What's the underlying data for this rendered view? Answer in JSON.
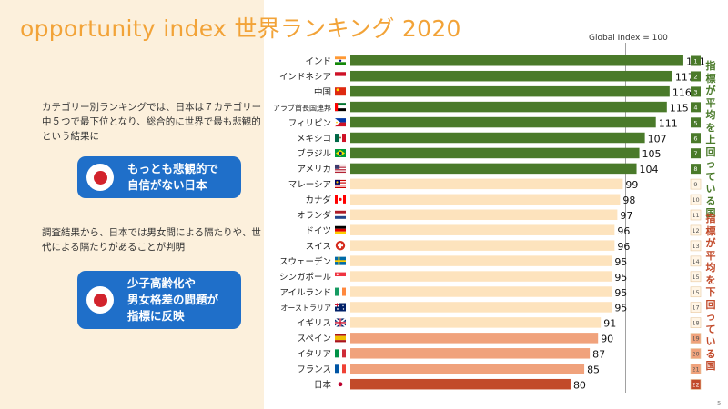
{
  "title": "opportunity index 世界ランキング 2020",
  "left_panel": {
    "paragraph1": "カテゴリー別ランキングでは、日本は７カテゴリー中５つで最下位となり、総合的に世界で最も悲観的という結果に",
    "callout1": [
      "もっとも悲観的で",
      "自信がない日本"
    ],
    "paragraph2": "調査結果から、日本では男女間による隔たりや、世代による隔たりがあることが判明",
    "callout2": [
      "少子高齢化や",
      "男女格差の問題が",
      "指標に反映"
    ],
    "callout_icon": "japan-flag-icon"
  },
  "side_notes": {
    "above": "指標が平均を上回っている国",
    "below": "指標が平均を下回っている国"
  },
  "page_number": "5",
  "colors": {
    "above": "#4a7a2a",
    "below_light": "#fde3bd",
    "below_mid": "#f0a27c",
    "below_bottom": "#c24a2a",
    "accent": "#f2a338",
    "callout": "#1f6fc9"
  },
  "chart_data": {
    "type": "bar",
    "orientation": "horizontal",
    "reference_label": "Global Index = 100",
    "reference_value": 100,
    "xlim": [
      0,
      123
    ],
    "categories": [
      "インド",
      "インドネシア",
      "中国",
      "アラブ首長国連邦",
      "フィリピン",
      "メキシコ",
      "ブラジル",
      "アメリカ",
      "マレーシア",
      "カナダ",
      "オランダ",
      "ドイツ",
      "スイス",
      "スウェーデン",
      "シンガポール",
      "アイルランド",
      "オーストラリア",
      "イギリス",
      "スペイン",
      "イタリア",
      "フランス",
      "日本"
    ],
    "values": [
      121,
      117,
      116,
      115,
      111,
      107,
      105,
      104,
      99,
      98,
      97,
      96,
      96,
      95,
      95,
      95,
      95,
      91,
      90,
      87,
      85,
      80
    ],
    "ranks": [
      "1",
      "2",
      "3",
      "4",
      "5",
      "6",
      "7",
      "8",
      "9",
      "10",
      "11",
      "12",
      "13",
      "14",
      "15",
      "15",
      "17",
      "18",
      "19",
      "20",
      "21",
      "22"
    ],
    "flags": [
      "india-flag-icon",
      "indonesia-flag-icon",
      "china-flag-icon",
      "uae-flag-icon",
      "philippines-flag-icon",
      "mexico-flag-icon",
      "brazil-flag-icon",
      "usa-flag-icon",
      "malaysia-flag-icon",
      "canada-flag-icon",
      "netherlands-flag-icon",
      "germany-flag-icon",
      "switzerland-flag-icon",
      "sweden-flag-icon",
      "singapore-flag-icon",
      "ireland-flag-icon",
      "australia-flag-icon",
      "uk-flag-icon",
      "spain-flag-icon",
      "italy-flag-icon",
      "france-flag-icon",
      "japan-flag-icon"
    ],
    "groups": [
      "above",
      "above",
      "above",
      "above",
      "above",
      "above",
      "above",
      "above",
      "below_light",
      "below_light",
      "below_light",
      "below_light",
      "below_light",
      "below_light",
      "below_light",
      "below_light",
      "below_light",
      "below_light",
      "below_mid",
      "below_mid",
      "below_mid",
      "below_bottom"
    ]
  }
}
